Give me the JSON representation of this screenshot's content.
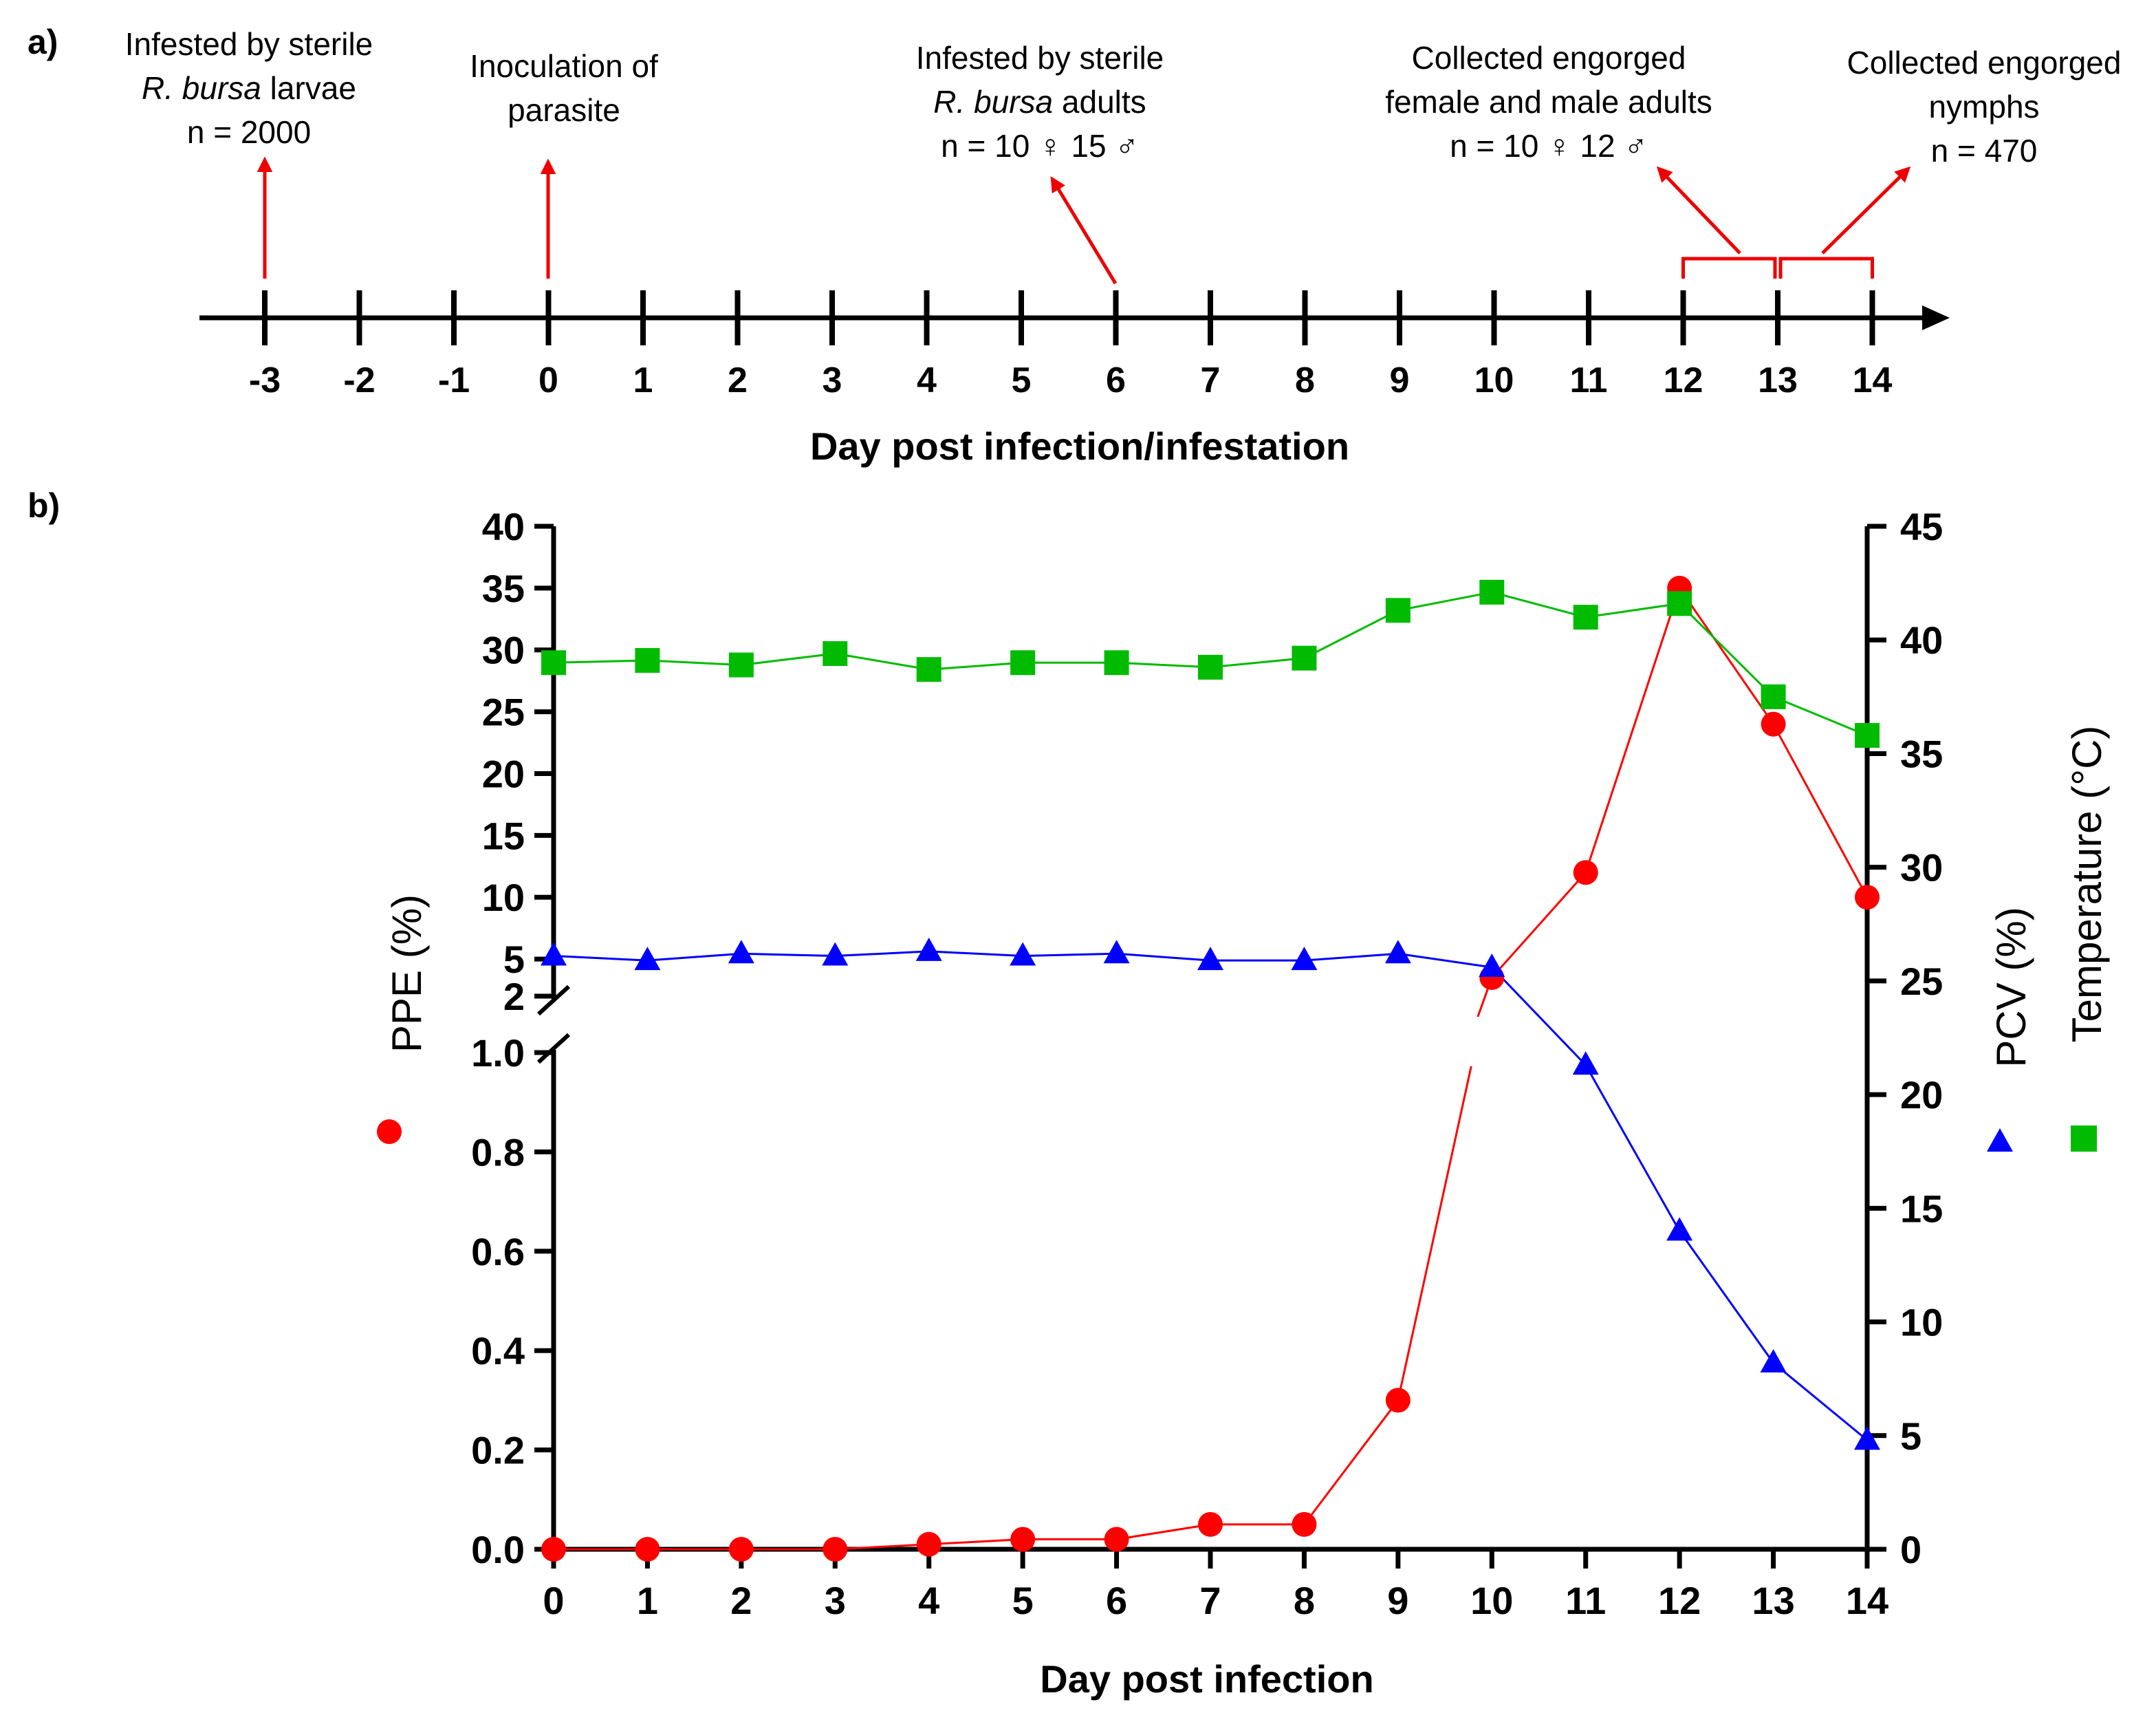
{
  "panel_a": {
    "label": "a)",
    "xlabel": "Day post infection/infestation",
    "days": [
      "-3",
      "-2",
      "-1",
      "0",
      "1",
      "2",
      "3",
      "4",
      "5",
      "6",
      "7",
      "8",
      "9",
      "10",
      "11",
      "12",
      "13",
      "14"
    ],
    "annotations": [
      {
        "day": -3,
        "lines": [
          "Infested by sterile",
          "R. bursa larvae",
          "n = 2000"
        ],
        "italic_part": "R. bursa",
        "rest": " larvae"
      },
      {
        "day": 0,
        "lines": [
          "Inoculation of",
          "parasite"
        ]
      },
      {
        "day": 6,
        "lines": [
          "Infested by sterile",
          "R. bursa adults",
          "n = 10 ♀ 15 ♂"
        ],
        "italic_part": "R. bursa",
        "rest": " adults"
      },
      {
        "day": 12.5,
        "lines": [
          "Collected engorged",
          "female and male adults",
          "n = 10 ♀ 12 ♂"
        ],
        "range": [
          12,
          13
        ]
      },
      {
        "day": 13.5,
        "lines": [
          "Collected engorged",
          "nymphs",
          "n = 470"
        ],
        "range": [
          13,
          14
        ]
      }
    ]
  },
  "chart_data": {
    "label": "b)",
    "type": "line",
    "xlabel": "Day post infection",
    "x": [
      0,
      1,
      2,
      3,
      4,
      5,
      6,
      7,
      8,
      9,
      10,
      11,
      12,
      13,
      14
    ],
    "x_ticks": [
      "0",
      "1",
      "2",
      "3",
      "4",
      "5",
      "6",
      "7",
      "8",
      "9",
      "10",
      "11",
      "12",
      "13",
      "14"
    ],
    "left_axis": {
      "label": "PPE (%)",
      "broken": true,
      "lower_range": [
        0,
        1.0
      ],
      "lower_ticks": [
        "0.0",
        "0.2",
        "0.4",
        "0.6",
        "0.8",
        "1.0"
      ],
      "upper_range": [
        2,
        40
      ],
      "upper_ticks": [
        "2",
        "5",
        "10",
        "15",
        "20",
        "25",
        "30",
        "35",
        "40"
      ]
    },
    "right_axis": {
      "labels": [
        "PCV (%)",
        "Temperature (°C)"
      ],
      "range": [
        0,
        45
      ],
      "ticks": [
        "0",
        "5",
        "10",
        "15",
        "20",
        "25",
        "30",
        "35",
        "40",
        "45"
      ]
    },
    "series": [
      {
        "name": "PPE (%)",
        "axis": "left",
        "marker": "circle",
        "color": "#ff0000",
        "values": [
          0,
          0,
          0,
          0,
          0.01,
          0.02,
          0.02,
          0.05,
          0.05,
          0.3,
          3.5,
          12,
          35,
          24,
          10
        ]
      },
      {
        "name": "PCV (%)",
        "axis": "right",
        "marker": "triangle",
        "color": "#0000ff",
        "values": [
          26.1,
          25.9,
          26.2,
          26.1,
          26.3,
          26.1,
          26.2,
          25.9,
          25.9,
          26.2,
          25.6,
          21.3,
          14.0,
          8.2,
          4.8
        ]
      },
      {
        "name": "Temperature (°C)",
        "axis": "right",
        "marker": "square",
        "color": "#00bb00",
        "values": [
          39.0,
          39.1,
          38.9,
          39.4,
          38.7,
          39.0,
          39.0,
          38.8,
          39.2,
          41.3,
          42.1,
          41.0,
          41.6,
          37.5,
          35.8
        ]
      }
    ]
  }
}
